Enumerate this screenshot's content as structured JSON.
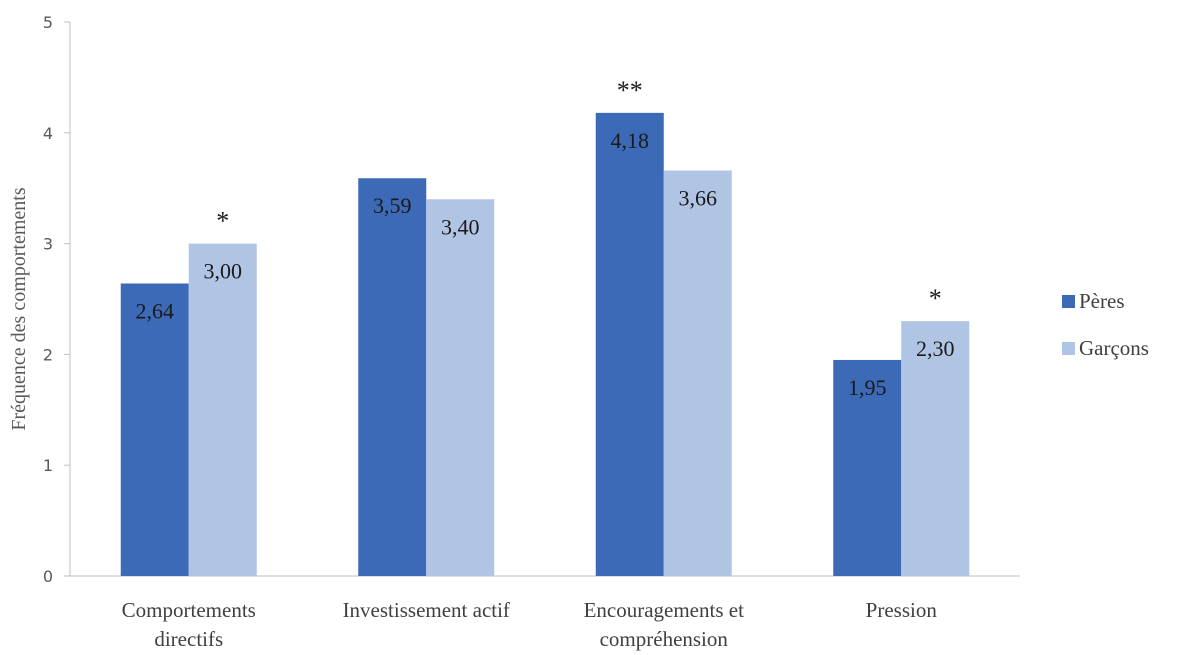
{
  "chart_data": {
    "type": "bar",
    "title": "",
    "xlabel": "",
    "ylabel": "Fréquence des comportements",
    "ylim": [
      0,
      5
    ],
    "yticks": [
      "0",
      "1",
      "2",
      "3",
      "4",
      "5"
    ],
    "categories": [
      [
        "Comportements",
        "directifs"
      ],
      [
        "Investissement actif"
      ],
      [
        "Encouragements et",
        "compréhension"
      ],
      [
        "Pression"
      ]
    ],
    "series": [
      {
        "name": "Pères",
        "color": "#3C6AB6",
        "values": [
          2.64,
          3.59,
          4.18,
          1.95
        ],
        "labels": [
          "2,64",
          "3,59",
          "4,18",
          "1,95"
        ]
      },
      {
        "name": "Garçons",
        "color": "#B0C4E4",
        "values": [
          3.0,
          3.4,
          3.66,
          2.3
        ],
        "labels": [
          "3,00",
          "3,40",
          "3,66",
          "2,30"
        ]
      }
    ],
    "significance": [
      "*",
      "",
      "**",
      "*"
    ],
    "grid": false,
    "legend_position": "right"
  }
}
